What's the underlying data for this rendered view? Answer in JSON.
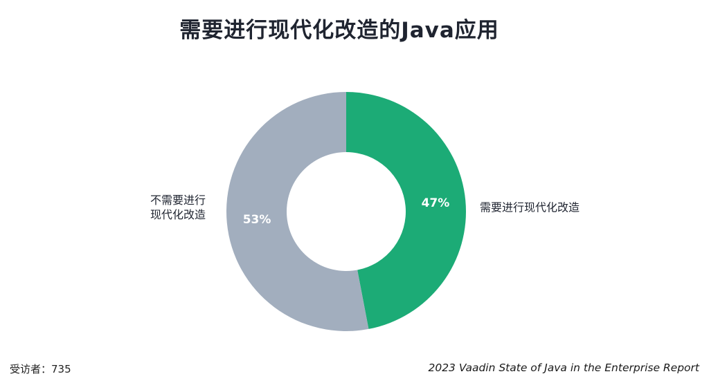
{
  "chart_data": {
    "type": "pie",
    "title": "需要进行现代化改造的Java应用",
    "donut": true,
    "categories": [
      "需要进行现代化改造",
      "不需要进行现代化改造"
    ],
    "category_label_lines": [
      [
        "需要进行现代化改造"
      ],
      [
        "不需要进行",
        "现代化改造"
      ]
    ],
    "values": [
      47,
      53
    ],
    "value_labels": [
      "47%",
      "53%"
    ],
    "colors": [
      "#1cab76",
      "#a2aebe"
    ]
  },
  "footer": {
    "respondents": "受访者：735",
    "source": "2023 Vaadin State of Java in the Enterprise Report"
  }
}
